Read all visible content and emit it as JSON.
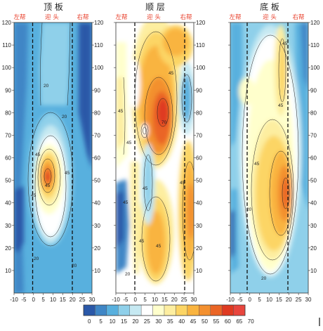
{
  "chart_data": [
    {
      "type": "heatmap",
      "title": "顶 板",
      "top_labels": [
        "左帮",
        "迎 头",
        "右帮"
      ],
      "x_ticks": [
        "-10",
        "-5",
        "0",
        "5",
        "10",
        "15",
        "20",
        "25",
        "30"
      ],
      "xlim": [
        -10,
        30
      ],
      "ylim": [
        0,
        120
      ],
      "dashed_lines_x": [
        0,
        20
      ],
      "contour_labels": [
        "20",
        "20",
        "45",
        "45",
        "45",
        "45",
        "20",
        "20"
      ],
      "max_region": {
        "x": 8,
        "y": 52,
        "level": 70
      }
    },
    {
      "type": "heatmap",
      "title": "顺 层",
      "top_labels": [
        "左帮",
        "迎 头",
        "右帮"
      ],
      "x_ticks": [
        "-10",
        "-5",
        "0",
        "5",
        "10",
        "15",
        "20",
        "25",
        "30"
      ],
      "xlim": [
        -10,
        30
      ],
      "ylim": [
        0,
        120
      ],
      "dashed_lines_x": [
        0,
        25
      ],
      "contour_labels": [
        "45",
        "45",
        "70",
        "45",
        "45",
        "45",
        "45",
        "45",
        "45",
        "20"
      ],
      "max_region": {
        "x": 13,
        "y": 78,
        "level": 70
      }
    },
    {
      "type": "heatmap",
      "title": "底 板",
      "top_labels": [
        "左帮",
        "迎 头",
        "右帮"
      ],
      "x_ticks": [
        "-10",
        "-5",
        "0",
        "5",
        "10",
        "15",
        "20",
        "25",
        "30"
      ],
      "xlim": [
        -10,
        30
      ],
      "ylim": [
        0,
        120
      ],
      "dashed_lines_x": [
        0,
        20
      ],
      "contour_labels": [
        "20",
        "45",
        "45",
        "45",
        "20"
      ],
      "max_region": {
        "x": 17,
        "y": 45,
        "level": 65
      }
    }
  ],
  "y_ticks": [
    "10",
    "20",
    "30",
    "40",
    "50",
    "60",
    "70",
    "80",
    "90",
    "100",
    "110",
    "120"
  ],
  "colorbar": {
    "ticks": [
      "0",
      "5",
      "10",
      "15",
      "20",
      "25",
      "30",
      "35",
      "40",
      "45",
      "50",
      "55",
      "60",
      "65",
      "70"
    ],
    "colors": [
      "#2a58a8",
      "#3f86c6",
      "#58b0de",
      "#8fd0ea",
      "#c6e9f2",
      "#ffffff",
      "#ffffcc",
      "#fdeea0",
      "#fcd565",
      "#f9b43f",
      "#f3902f",
      "#ea6525",
      "#df3a21",
      "#e8463e"
    ]
  }
}
